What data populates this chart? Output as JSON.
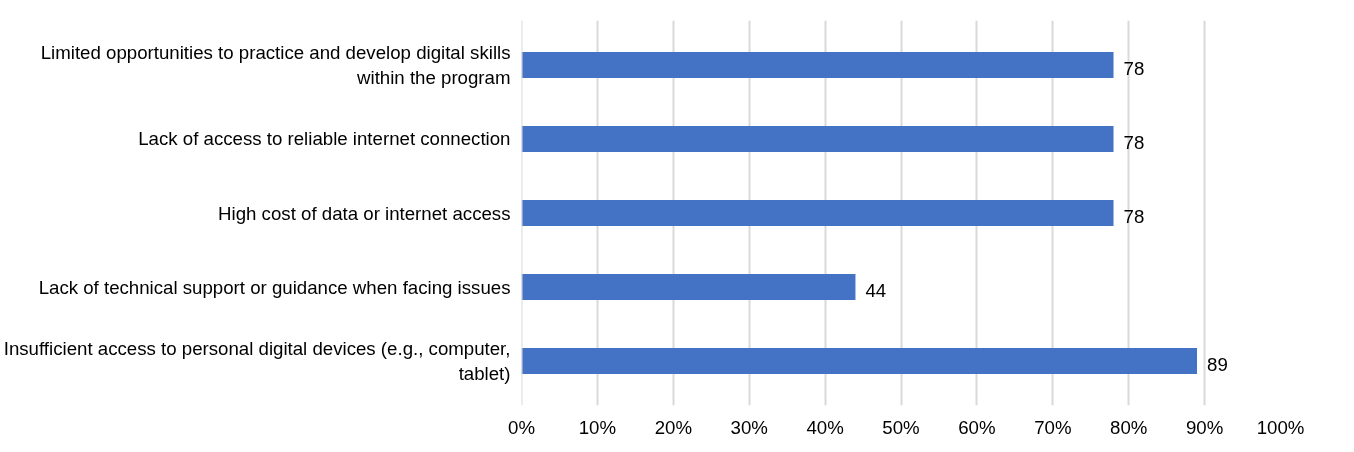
{
  "chart_data": {
    "type": "bar",
    "orientation": "horizontal",
    "categories": [
      "Limited opportunities to practice and develop digital skills within the program",
      "Lack of access to reliable internet connection",
      "High cost of data or internet access",
      "Lack of technical support or guidance when facing issues",
      "Insufficient access to personal digital devices (e.g., computer, tablet)"
    ],
    "values": [
      78,
      78,
      78,
      44,
      89
    ],
    "color": "#4472c4",
    "data_labels": true,
    "xlim": [
      0,
      100
    ],
    "xticks": [
      {
        "value": 0,
        "label": "0%"
      },
      {
        "value": 10,
        "label": "10%"
      },
      {
        "value": 20,
        "label": "20%"
      },
      {
        "value": 30,
        "label": "30%"
      },
      {
        "value": 40,
        "label": "40%"
      },
      {
        "value": 50,
        "label": "50%"
      },
      {
        "value": 60,
        "label": "60%"
      },
      {
        "value": 70,
        "label": "70%"
      },
      {
        "value": 80,
        "label": "80%"
      },
      {
        "value": 90,
        "label": "90%"
      },
      {
        "value": 100,
        "label": "100%"
      }
    ],
    "grid": "x"
  }
}
